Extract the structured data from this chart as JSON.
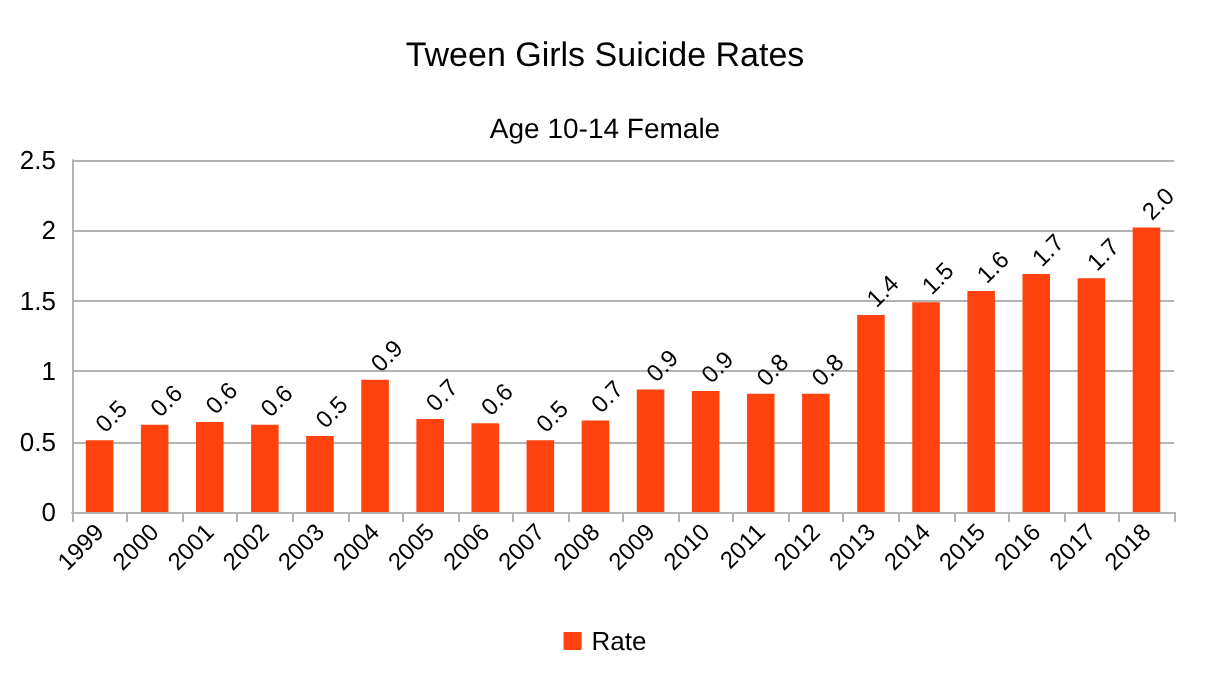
{
  "chart_data": {
    "type": "bar",
    "title": "Tween Girls Suicide Rates",
    "subtitle": "Age 10-14 Female",
    "categories": [
      "1999",
      "2000",
      "2001",
      "2002",
      "2003",
      "2004",
      "2005",
      "2006",
      "2007",
      "2008",
      "2009",
      "2010",
      "2011",
      "2012",
      "2013",
      "2014",
      "2015",
      "2016",
      "2017",
      "2018"
    ],
    "series": [
      {
        "name": "Rate",
        "color": "#ff420e",
        "values": [
          0.51,
          0.62,
          0.64,
          0.62,
          0.54,
          0.94,
          0.66,
          0.63,
          0.51,
          0.65,
          0.87,
          0.86,
          0.84,
          0.84,
          1.4,
          1.49,
          1.57,
          1.69,
          1.66,
          2.02
        ],
        "value_labels": [
          "0.5",
          "0.6",
          "0.6",
          "0.6",
          "0.5",
          "0.9",
          "0.7",
          "0.6",
          "0.5",
          "0.7",
          "0.9",
          "0.9",
          "0.8",
          "0.8",
          "1.4",
          "1.5",
          "1.6",
          "1.7",
          "1.7",
          "2.0"
        ]
      }
    ],
    "ylim": [
      0,
      2.5
    ],
    "yticks": [
      0,
      0.5,
      1,
      1.5,
      2,
      2.5
    ],
    "grid": "y",
    "legend": "bottom"
  }
}
